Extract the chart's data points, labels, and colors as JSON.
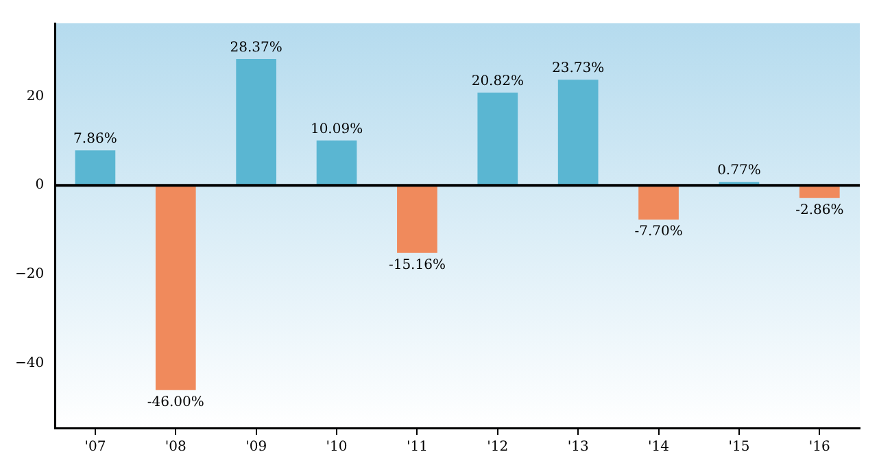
{
  "chart_data": {
    "type": "bar",
    "categories": [
      "'07",
      "'08",
      "'09",
      "'10",
      "'11",
      "'12",
      "'13",
      "'14",
      "'15",
      "'16"
    ],
    "values": [
      7.86,
      -46.0,
      28.37,
      10.09,
      -15.16,
      20.82,
      23.73,
      -7.7,
      0.77,
      -2.86
    ],
    "colors": [
      "#5ab6d2",
      "#f08a5c",
      "#5ab6d2",
      "#5ab6d2",
      "#f08a5c",
      "#5ab6d2",
      "#5ab6d2",
      "#f08a5c",
      "#5ab6d2",
      "#f08a5c"
    ],
    "value_labels": [
      "7.86%",
      "-46.00%",
      "28.37%",
      "10.09%",
      "-15.16%",
      "20.82%",
      "23.73%",
      "-7.70%",
      "0.77%",
      "-2.86%"
    ],
    "ylim": [
      -54.5,
      36.4
    ],
    "yticks": [
      {
        "value": -40,
        "label": "−40"
      },
      {
        "value": -20,
        "label": "−20"
      },
      0,
      20
    ],
    "ref_lines": [
      {
        "axis": "y",
        "value": 0,
        "color": "#000000"
      }
    ],
    "grid": false,
    "legend": false
  }
}
